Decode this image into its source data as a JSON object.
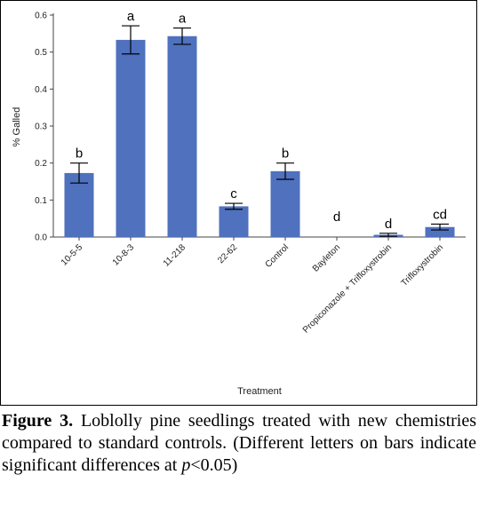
{
  "chart_data": {
    "type": "bar",
    "categories": [
      "10-5-5",
      "10-8-3",
      "11-218",
      "22-62",
      "Control",
      "Bayleton",
      "Propiconazole + Trifloxystrobin",
      "Trifloxystrobin"
    ],
    "values": [
      0.173,
      0.533,
      0.543,
      0.083,
      0.178,
      0.0,
      0.006,
      0.027
    ],
    "errors": [
      0.027,
      0.038,
      0.022,
      0.008,
      0.022,
      0.0,
      0.004,
      0.008
    ],
    "letters": [
      "b",
      "a",
      "a",
      "c",
      "b",
      "d",
      "d",
      "cd"
    ],
    "title": "",
    "xlabel": "Treatment",
    "ylabel": "% Galled",
    "ylim": [
      0,
      0.6
    ],
    "yticks": [
      0.0,
      0.1,
      0.2,
      0.3,
      0.4,
      0.5,
      0.6
    ],
    "ytick_labels": [
      "0.0",
      "0.1",
      "0.2",
      "0.3",
      "0.4",
      "0.5",
      "0.6"
    ],
    "bar_color": "#4f71be",
    "grid": false,
    "legend": "none"
  },
  "caption": {
    "label": "Figure 3.",
    "text_before_p": " Loblolly pine seedlings treated with new chemistries compared to standard controls. (Different letters on bars indicate significant differences at ",
    "p_symbol": "p",
    "text_after_p": "<0.05)"
  }
}
